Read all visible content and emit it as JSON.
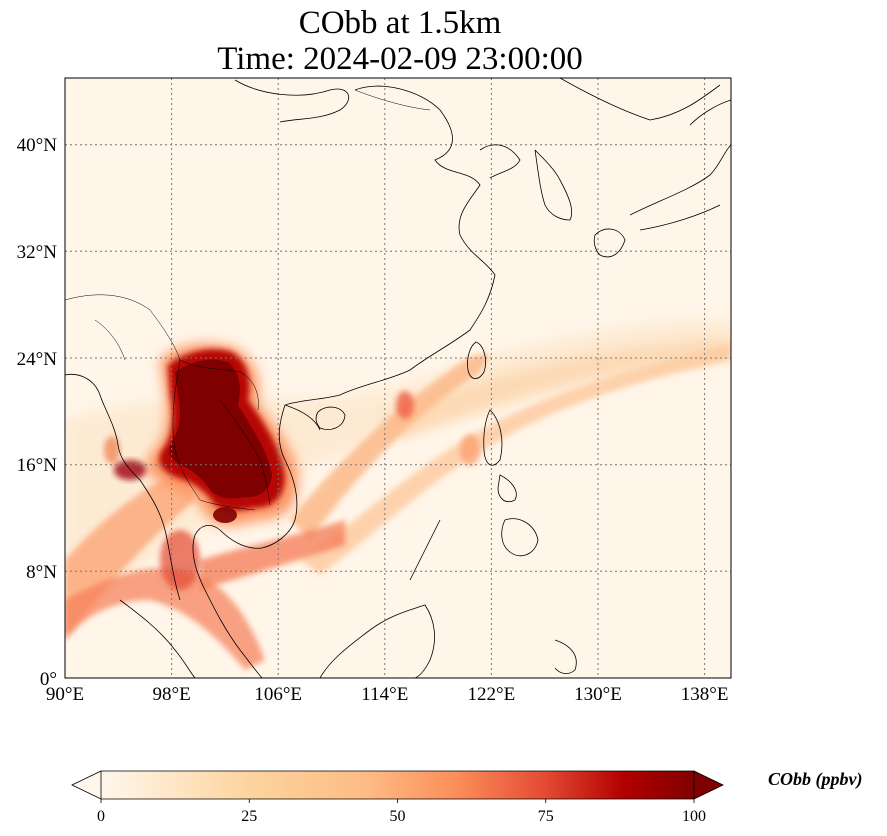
{
  "title": {
    "line1": "CObb at 1.5km",
    "line2": "Time: 2024-02-09 23:00:00"
  },
  "map": {
    "variable": "CObb",
    "level": "1.5km",
    "time": "2024-02-09 23:00:00",
    "lon_range": [
      90,
      140
    ],
    "lat_range": [
      0,
      45
    ],
    "gridlines": "dotted",
    "lon_ticks": [
      "90°E",
      "98°E",
      "106°E",
      "114°E",
      "122°E",
      "130°E",
      "138°E"
    ],
    "lat_ticks": [
      "0°",
      "8°N",
      "16°N",
      "24°N",
      "32°N",
      "40°N"
    ],
    "colormap": "OrRd",
    "colors": {
      "low": "#fff7ec",
      "mid": "#fdbb84",
      "high": "#7f0000"
    },
    "features": [
      "coastlines",
      "country borders"
    ],
    "plume_regions": [
      "Myanmar-Laos-Thailand-Cambodia (>100 ppbv)",
      "South China Sea plume toward Taiwan and Pacific",
      "Bay of Bengal / Andaman Sea"
    ]
  },
  "colorbar": {
    "label": "CObb (ppbv)",
    "ticks": [
      "0",
      "25",
      "50",
      "75",
      "100"
    ],
    "range": [
      0,
      100
    ],
    "extend": "both"
  }
}
